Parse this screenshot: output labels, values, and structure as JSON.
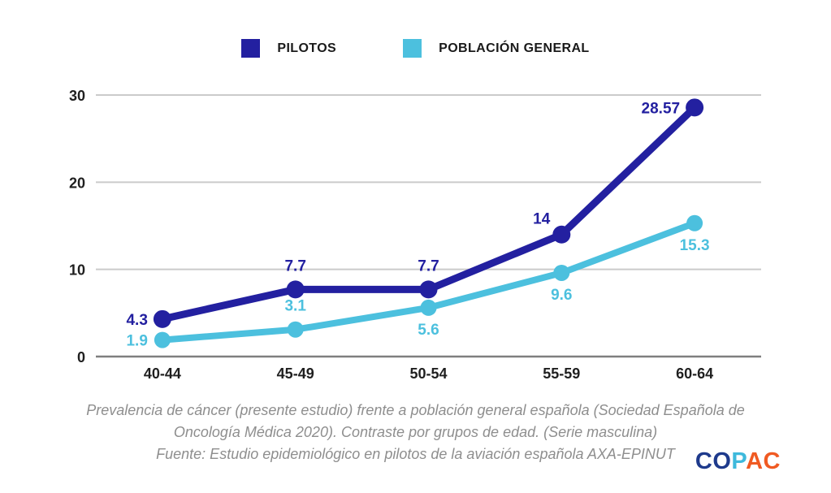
{
  "legend": {
    "items": [
      {
        "label": "PILOTOS",
        "color": "#2320A0"
      },
      {
        "label": "POBLACIÓN GENERAL",
        "color": "#4CC0DE"
      }
    ]
  },
  "chart_data": {
    "type": "line",
    "title": "",
    "xlabel": "",
    "ylabel": "",
    "categories": [
      "40-44",
      "45-49",
      "50-54",
      "55-59",
      "60-64"
    ],
    "series": [
      {
        "name": "PILOTOS",
        "color": "#2320A0",
        "values": [
          4.3,
          7.7,
          7.7,
          14,
          28.57
        ],
        "labels": [
          "4.3",
          "7.7",
          "7.7",
          "14",
          "28.57"
        ],
        "label_placements": [
          "left",
          "above",
          "above",
          "above-left",
          "left"
        ]
      },
      {
        "name": "POBLACIÓN GENERAL",
        "color": "#4CC0DE",
        "values": [
          1.9,
          3.1,
          5.6,
          9.6,
          15.3
        ],
        "labels": [
          "1.9",
          "3.1",
          "5.6",
          "9.6",
          "15.3"
        ],
        "label_placements": [
          "left",
          "above",
          "below",
          "below",
          "below"
        ]
      }
    ],
    "yticks": [
      0,
      10,
      20,
      30
    ],
    "ylim": [
      0,
      30
    ],
    "grid": true,
    "legend_position": "top",
    "grid_color": "#cbcbcb",
    "axis_color": "#7f7f7f"
  },
  "caption": {
    "line1": "Prevalencia de cáncer (presente estudio) frente a población general española (Sociedad Española de",
    "line2": "Oncología Médica 2020). Contraste por grupos de edad. (Serie masculina)",
    "line3": "Fuente: Estudio epidemiológico en pilotos de la aviación española AXA-EPINUT"
  },
  "logo": {
    "part1": "CO",
    "part2": "P",
    "part3": "AC",
    "colors": {
      "part1": "#1E3A8C",
      "part2": "#3EB9DC",
      "part3": "#F05A22"
    }
  }
}
